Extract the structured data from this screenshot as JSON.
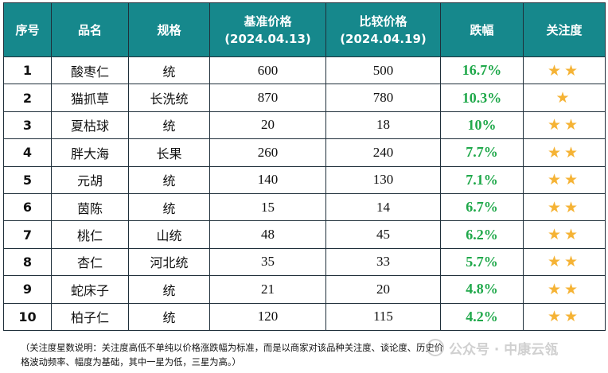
{
  "headers": {
    "serial": "序号",
    "name": "品名",
    "spec": "规格",
    "base_price": "基准价格",
    "base_date": "(2024.04.13)",
    "compare_price": "比较价格",
    "compare_date": "(2024.04.19)",
    "change": "跌幅",
    "attention": "关注度"
  },
  "rows": [
    {
      "serial": "1",
      "name": "酸枣仁",
      "spec": "统",
      "base": "600",
      "compare": "500",
      "change": "16.7%",
      "stars": "★★",
      "star_count": 2
    },
    {
      "serial": "2",
      "name": "猫抓草",
      "spec": "长洗统",
      "base": "870",
      "compare": "780",
      "change": "10.3%",
      "stars": "★",
      "star_count": 1
    },
    {
      "serial": "3",
      "name": "夏枯球",
      "spec": "统",
      "base": "20",
      "compare": "18",
      "change": "10%",
      "stars": "★★",
      "star_count": 2
    },
    {
      "serial": "4",
      "name": "胖大海",
      "spec": "长果",
      "base": "260",
      "compare": "240",
      "change": "7.7%",
      "stars": "★★",
      "star_count": 2
    },
    {
      "serial": "5",
      "name": "元胡",
      "spec": "统",
      "base": "140",
      "compare": "130",
      "change": "7.1%",
      "stars": "★★",
      "star_count": 2
    },
    {
      "serial": "6",
      "name": "茵陈",
      "spec": "统",
      "base": "15",
      "compare": "14",
      "change": "6.7%",
      "stars": "★★",
      "star_count": 2
    },
    {
      "serial": "7",
      "name": "桃仁",
      "spec": "山统",
      "base": "48",
      "compare": "45",
      "change": "6.2%",
      "stars": "★★",
      "star_count": 2
    },
    {
      "serial": "8",
      "name": "杏仁",
      "spec": "河北统",
      "base": "35",
      "compare": "33",
      "change": "5.7%",
      "stars": "★★",
      "star_count": 2
    },
    {
      "serial": "9",
      "name": "蛇床子",
      "spec": "统",
      "base": "21",
      "compare": "20",
      "change": "4.8%",
      "stars": "★★",
      "star_count": 2
    },
    {
      "serial": "10",
      "name": "柏子仁",
      "spec": "统",
      "base": "120",
      "compare": "115",
      "change": "4.2%",
      "stars": "★★",
      "star_count": 2
    }
  ],
  "note": {
    "line1": "（关注度星数说明：关注度高低不单纯以价格涨跌幅为标准，而是以商家对该品种关注度、谈论度、历史价",
    "line2": "格波动频率、幅度为基础，其中一星为低，三星为高。）"
  },
  "watermark": {
    "text": "公众号 · 中康云瓴",
    "icon": "wechat-icon"
  },
  "colors": {
    "header_bg": "#16888c",
    "header_text": "#ffffff",
    "change_text": "#1fa84a",
    "star": "#f5b335",
    "border": "#1f2f3a"
  }
}
